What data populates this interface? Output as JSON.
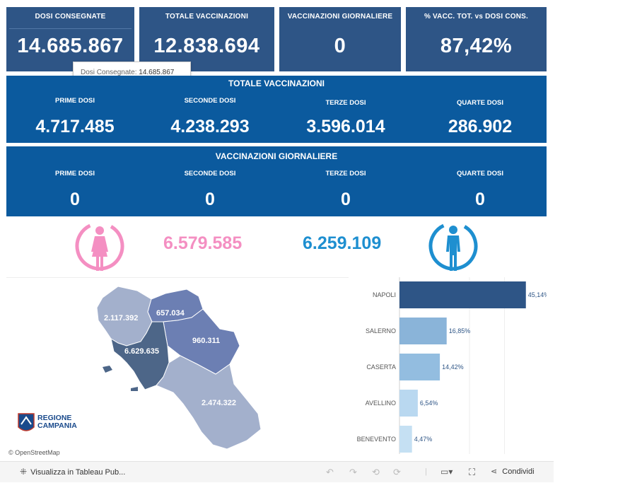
{
  "kpis": [
    {
      "label": "DOSI  CONSEGNATE",
      "value": "14.685.867"
    },
    {
      "label": "TOTALE VACCINAZIONI",
      "value": "12.838.694"
    },
    {
      "label": "VACCINAZIONI GIORNALIERE",
      "value": "0"
    },
    {
      "label": "% VACC. TOT. vs DOSI CONS.",
      "value": "87,42%"
    }
  ],
  "tooltip": {
    "label": "Dosi Consegnate:",
    "value": "14.685.867"
  },
  "totale": {
    "title": "TOTALE VACCINAZIONI",
    "items": [
      {
        "label": "PRIME DOSI",
        "value": "4.717.485"
      },
      {
        "label": "SECONDE DOSI",
        "value": "4.238.293"
      },
      {
        "label": "TERZE DOSI",
        "value": "3.596.014"
      },
      {
        "label": "QUARTE DOSI",
        "value": "286.902"
      }
    ]
  },
  "giornaliere": {
    "title": "VACCINAZIONI GIORNALIERE",
    "items": [
      {
        "label": "PRIME DOSI",
        "value": "0"
      },
      {
        "label": "SECONDE DOSI",
        "value": "0"
      },
      {
        "label": "TERZE DOSI",
        "value": "0"
      },
      {
        "label": "QUARTE DOSI",
        "value": "0"
      }
    ]
  },
  "gender": {
    "female_value": "6.579.585",
    "male_value": "6.259.109",
    "female_color": "#f48fc2",
    "male_color": "#1e8fd0",
    "female_icon": "female-icon",
    "male_icon": "male-icon"
  },
  "map": {
    "labels": [
      "2.117.392",
      "657.034",
      "960.311",
      "6.629.635",
      "2.474.322"
    ],
    "logo_line1": "REGIONE",
    "logo_line2": "CAMPANIA",
    "attribution": "© OpenStreetMap"
  },
  "chart_data": {
    "type": "bar",
    "orientation": "horizontal",
    "categories": [
      "NAPOLI",
      "SALERNO",
      "CASERTA",
      "AVELLINO",
      "BENEVENTO"
    ],
    "values": [
      45.14,
      16.85,
      14.42,
      6.54,
      4.47
    ],
    "value_labels": [
      "45,14%",
      "16,85%",
      "14,42%",
      "6,54%",
      "4,47%"
    ],
    "unit": "%",
    "xlim": [
      0,
      50
    ],
    "colors": [
      "#2e5586",
      "#8ab4d9",
      "#93bde0",
      "#b9d8f0",
      "#c5e0f3"
    ]
  },
  "toolbar": {
    "view_label": "Visualizza in Tableau Pub...",
    "share_label": "Condividi"
  }
}
